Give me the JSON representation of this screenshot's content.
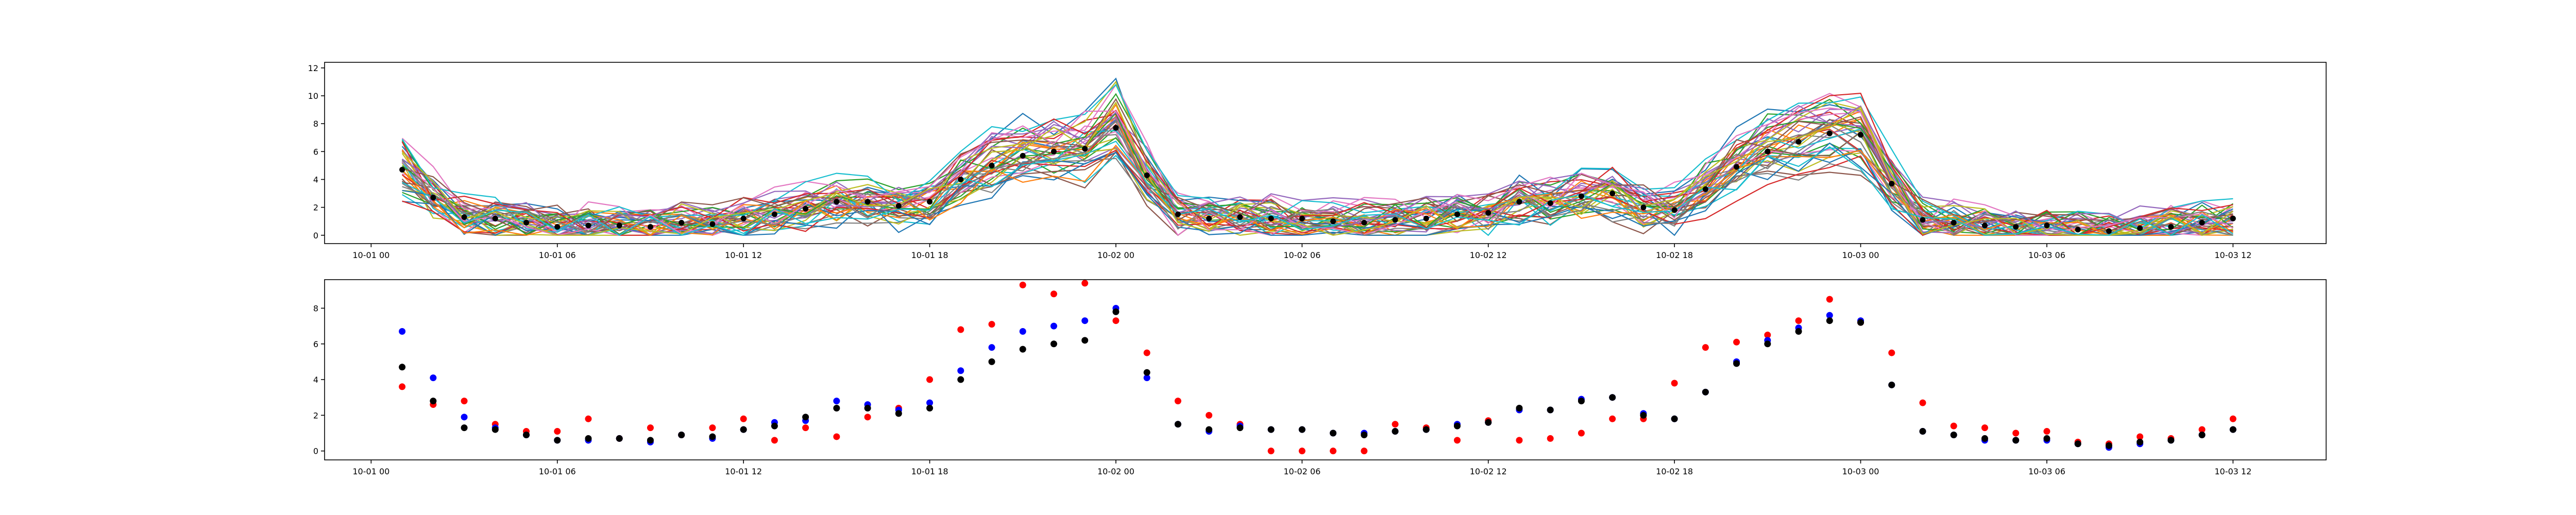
{
  "chart_data": [
    {
      "type": "line",
      "title": "",
      "xlabel": "",
      "ylabel": "",
      "xlim": [
        "2023-09-30T22:30",
        "2023-10-03T15:00"
      ],
      "ylim": [
        -0.6,
        12.4
      ],
      "xticks": [
        "10-01 00",
        "10-01 06",
        "10-01 12",
        "10-01 18",
        "10-02 00",
        "10-02 06",
        "10-02 12",
        "10-02 18",
        "10-03 00",
        "10-03 06",
        "10-03 12"
      ],
      "yticks": [
        "0",
        "2",
        "4",
        "6",
        "8",
        "10",
        "12"
      ],
      "x_start": "2023-10-01T01:00",
      "x_end": "2023-10-03T12:00",
      "n_points": 60,
      "n_lines": 40,
      "palette": [
        "#1f77b4",
        "#ff7f0e",
        "#2ca02c",
        "#d62728",
        "#9467bd",
        "#8c564b",
        "#e377c2",
        "#7f7f7f",
        "#bcbd22",
        "#17becf"
      ],
      "series": [
        {
          "name": "",
          "color": "#000000",
          "marker": "dot",
          "values": [
            4.7,
            2.7,
            1.3,
            1.2,
            0.9,
            0.6,
            0.7,
            0.7,
            0.6,
            0.9,
            0.8,
            1.2,
            1.5,
            1.9,
            2.4,
            2.4,
            2.1,
            2.4,
            4.0,
            5.0,
            5.7,
            6.0,
            6.2,
            7.7,
            4.3,
            1.5,
            1.2,
            1.3,
            1.2,
            1.2,
            1.0,
            0.9,
            1.1,
            1.2,
            1.5,
            1.6,
            2.4,
            2.3,
            2.8,
            3.0,
            2.0,
            1.8,
            3.3,
            4.9,
            6.0,
            6.7,
            7.3,
            7.2,
            3.7,
            1.1,
            0.9,
            0.7,
            0.6,
            0.7,
            0.4,
            0.3,
            0.5,
            0.6,
            0.9,
            1.2
          ]
        }
      ]
    },
    {
      "type": "scatter",
      "title": "",
      "xlabel": "",
      "ylabel": "",
      "xlim": [
        "2023-09-30T22:30",
        "2023-10-03T15:00"
      ],
      "ylim": [
        -0.5,
        9.6
      ],
      "xticks": [
        "10-01 00",
        "10-01 06",
        "10-01 12",
        "10-01 18",
        "10-02 00",
        "10-02 06",
        "10-02 12",
        "10-02 18",
        "10-03 00",
        "10-03 06",
        "10-03 12"
      ],
      "yticks": [
        "0",
        "2",
        "4",
        "6",
        "8"
      ],
      "x_start": "2023-10-01T01:00",
      "x_end": "2023-10-03T12:00",
      "series": [
        {
          "name": "",
          "color": "#ff0000",
          "values": [
            3.6,
            2.6,
            2.8,
            1.5,
            1.1,
            1.1,
            1.8,
            0.7,
            1.3,
            0.9,
            1.3,
            1.8,
            0.6,
            1.3,
            0.8,
            1.9,
            2.4,
            4.0,
            6.8,
            7.1,
            9.3,
            8.8,
            9.4,
            7.3,
            5.5,
            2.8,
            2.0,
            1.5,
            0.0,
            0.0,
            0.0,
            0.0,
            1.5,
            1.3,
            0.6,
            1.7,
            0.6,
            0.7,
            1.0,
            1.8,
            1.8,
            3.8,
            5.8,
            6.1,
            6.5,
            7.3,
            8.5,
            7.2,
            5.5,
            2.7,
            1.4,
            1.3,
            1.0,
            1.1,
            0.5,
            0.4,
            0.8,
            0.7,
            1.2,
            1.8
          ]
        },
        {
          "name": "",
          "color": "#0000ff",
          "values": [
            6.7,
            4.1,
            1.9,
            1.3,
            0.9,
            0.6,
            0.6,
            0.7,
            0.5,
            0.9,
            0.7,
            1.2,
            1.6,
            1.7,
            2.8,
            2.6,
            2.3,
            2.7,
            4.5,
            5.8,
            6.7,
            7.0,
            7.3,
            8.0,
            4.1,
            1.5,
            1.1,
            1.4,
            1.2,
            1.2,
            1.0,
            1.0,
            1.1,
            1.2,
            1.5,
            1.6,
            2.3,
            2.3,
            2.9,
            3.0,
            2.1,
            1.8,
            3.3,
            5.0,
            6.2,
            6.9,
            7.6,
            7.3,
            3.7,
            1.1,
            0.9,
            0.6,
            0.6,
            0.6,
            0.4,
            0.2,
            0.4,
            0.6,
            0.9,
            1.2
          ]
        },
        {
          "name": "",
          "color": "#000000",
          "values": [
            4.7,
            2.8,
            1.3,
            1.2,
            0.9,
            0.6,
            0.7,
            0.7,
            0.6,
            0.9,
            0.8,
            1.2,
            1.4,
            1.9,
            2.4,
            2.4,
            2.1,
            2.4,
            4.0,
            5.0,
            5.7,
            6.0,
            6.2,
            7.8,
            4.4,
            1.5,
            1.2,
            1.3,
            1.2,
            1.2,
            1.0,
            0.9,
            1.1,
            1.2,
            1.4,
            1.6,
            2.4,
            2.3,
            2.8,
            3.0,
            2.0,
            1.8,
            3.3,
            4.9,
            6.0,
            6.7,
            7.3,
            7.2,
            3.7,
            1.1,
            0.9,
            0.7,
            0.6,
            0.7,
            0.4,
            0.3,
            0.5,
            0.6,
            0.9,
            1.2
          ]
        }
      ]
    }
  ]
}
